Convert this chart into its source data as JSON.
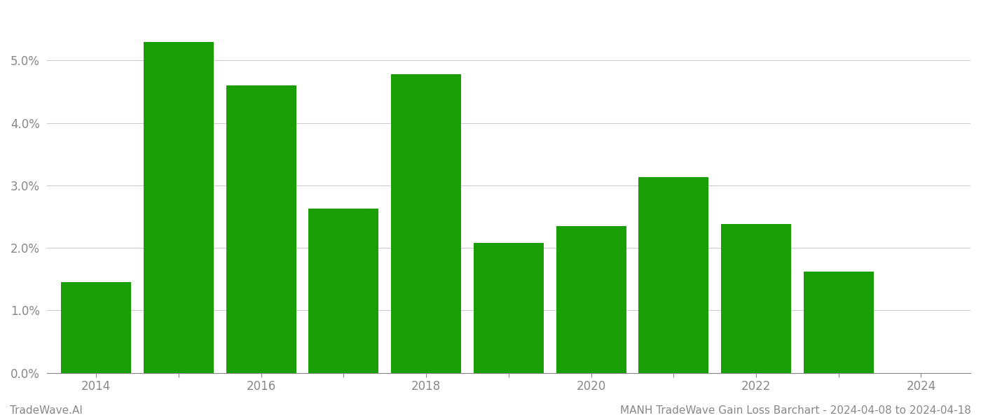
{
  "years": [
    2014,
    2015,
    2016,
    2017,
    2018,
    2019,
    2020,
    2021,
    2022,
    2023
  ],
  "values": [
    1.45,
    5.3,
    4.6,
    2.63,
    4.78,
    2.08,
    2.35,
    3.13,
    2.38,
    1.62
  ],
  "bar_color": "#1a9e06",
  "background_color": "#ffffff",
  "grid_color": "#cccccc",
  "axis_color": "#888888",
  "tick_label_color": "#888888",
  "ylim": [
    0,
    5.8
  ],
  "yticks": [
    0.0,
    1.0,
    2.0,
    3.0,
    4.0,
    5.0
  ],
  "xticks_labeled": [
    2014,
    2016,
    2018,
    2020,
    2022,
    2024
  ],
  "xticks_all": [
    2014,
    2015,
    2016,
    2017,
    2018,
    2019,
    2020,
    2021,
    2022,
    2023,
    2024
  ],
  "xlim": [
    2013.4,
    2024.6
  ],
  "footer_left": "TradeWave.AI",
  "footer_right": "MANH TradeWave Gain Loss Barchart - 2024-04-08 to 2024-04-18",
  "footer_color": "#888888",
  "footer_fontsize": 11,
  "bar_width": 0.85
}
